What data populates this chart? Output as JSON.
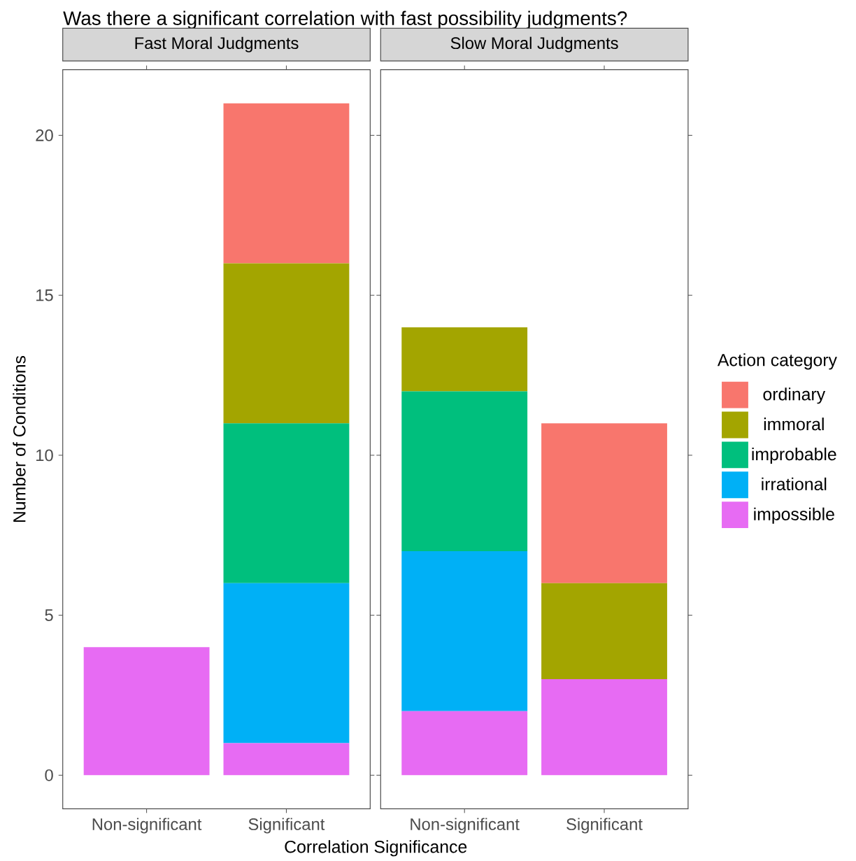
{
  "chart_data": [
    {
      "type": "bar",
      "title": "Was there a significant correlation with fast possibility judgments?",
      "subtitle": "Fast Moral Judgments",
      "ylabel": "Number of Conditions",
      "categories": [
        "Non-significant",
        "Significant"
      ],
      "stacked": true,
      "ylim": [
        -1.05,
        22.05
      ],
      "yticks": [
        0,
        5,
        10,
        15,
        20
      ],
      "series": [
        {
          "color": "#e76bf3",
          "values": [
            4,
            1
          ]
        },
        {
          "color": "#00b0f6",
          "values": [
            0,
            5
          ]
        },
        {
          "color": "#00bf7d",
          "values": [
            0,
            5
          ]
        },
        {
          "color": "#a3a500",
          "values": [
            0,
            5
          ]
        },
        {
          "color": "#f8766d",
          "values": [
            0,
            5
          ]
        }
      ]
    },
    {
      "type": "bar",
      "subtitle": "Slow Moral Judgments",
      "xlabel": "Correlation Significance",
      "legend_title": "Action category",
      "legend": "right",
      "tick_labels": "x",
      "categories": [
        "Non-significant",
        "Significant"
      ],
      "stacked": true,
      "ylim": [
        -1.05,
        22.05
      ],
      "yticks": [
        0,
        5,
        10,
        15,
        20
      ],
      "series": [
        {
          "name": "impossible",
          "color": "#e76bf3",
          "values": [
            2,
            3
          ]
        },
        {
          "name": "irrational",
          "color": "#00b0f6",
          "values": [
            5,
            0
          ]
        },
        {
          "name": "improbable",
          "color": "#00bf7d",
          "values": [
            5,
            0
          ]
        },
        {
          "name": "immoral",
          "color": "#a3a500",
          "values": [
            2,
            3
          ]
        },
        {
          "name": "ordinary",
          "color": "#f8766d",
          "values": [
            0,
            5
          ]
        }
      ]
    }
  ]
}
